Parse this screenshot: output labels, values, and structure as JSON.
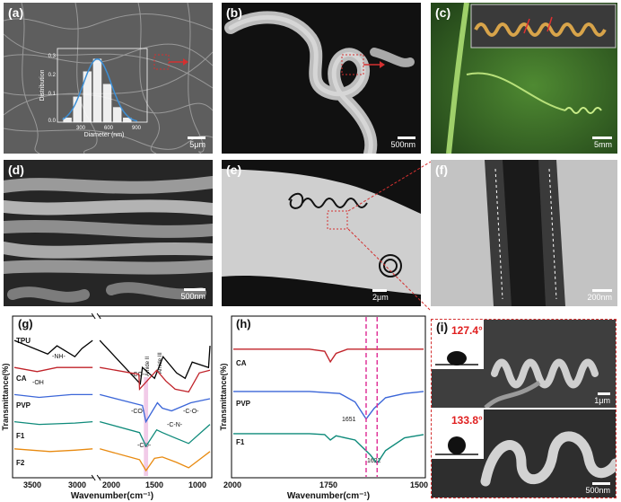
{
  "panels": {
    "a": {
      "label": "(a)",
      "scale": "5μm",
      "inset": {
        "ylabel": "Distribution",
        "xlabel": "Diameter (nm)",
        "yticks": [
          "0.3",
          "0.2",
          "0.1",
          "0.0"
        ],
        "xticks": [
          "300",
          "600",
          "900"
        ]
      }
    },
    "b": {
      "label": "(b)",
      "scale": "500nm"
    },
    "c": {
      "label": "(c)",
      "scale": "5mm"
    },
    "d": {
      "label": "(d)",
      "scale": "500nm"
    },
    "e": {
      "label": "(e)",
      "scale": "2μm"
    },
    "f": {
      "label": "(f)",
      "scale": "200nm"
    },
    "g": {
      "label": "(g)",
      "xlabel": "Wavenumber(cm⁻¹)",
      "ylabel": "Transmittance(%)",
      "xticks": [
        "3500",
        "3000",
        "2000",
        "1500",
        "1000"
      ],
      "series": [
        "TPU",
        "CA",
        "PVP",
        "F1",
        "F2"
      ],
      "colors": [
        "#000000",
        "#c0232a",
        "#3b66d8",
        "#0e8a7a",
        "#e88a10"
      ],
      "annotations": {
        "nh": "-NH-",
        "oh": "-OH",
        "co1": "-CO-",
        "co2": "-CO-",
        "co3": "-CO-",
        "amide2": "Amide II",
        "amide3": "Amide III",
        "coo": "-C-O-",
        "cn": "-C-N-"
      }
    },
    "h": {
      "label": "(h)",
      "xlabel": "Wavenumber(cm⁻¹)",
      "ylabel": "Transmittance(%)",
      "xticks": [
        "2000",
        "1750",
        "1500"
      ],
      "series": [
        "CA",
        "PVP",
        "F1"
      ],
      "colors": [
        "#c0232a",
        "#3b66d8",
        "#0e8a7a"
      ],
      "peaks": [
        "1651",
        "1622"
      ]
    },
    "i": {
      "label": "(i)",
      "angle_top": "127.4°",
      "angle_bottom": "133.8°",
      "scale_top": "1μm",
      "scale_bottom": "500nm"
    }
  },
  "chart_data": [
    {
      "type": "histogram",
      "panel": "a-inset",
      "xlabel": "Diameter (nm)",
      "ylabel": "Distribution",
      "x": [
        200,
        300,
        400,
        500,
        600,
        700,
        800
      ],
      "values": [
        0.02,
        0.12,
        0.24,
        0.3,
        0.18,
        0.07,
        0.02
      ],
      "ylim": [
        0,
        0.35
      ],
      "fit": "gaussian"
    },
    {
      "type": "line",
      "panel": "g",
      "xlabel": "Wavenumber(cm⁻¹)",
      "ylabel": "Transmittance(%)",
      "xlim": [
        3800,
        750
      ],
      "axis_break": [
        2700,
        2300
      ],
      "series": [
        {
          "name": "TPU",
          "x": [
            3800,
            3330,
            3200,
            2950,
            2850,
            2700,
            2300,
            1730,
            1700,
            1530,
            1410,
            1220,
            1100,
            1000,
            770,
            750
          ],
          "y": [
            5.0,
            4.5,
            4.8,
            4.4,
            4.7,
            5.0,
            5.0,
            3.4,
            4.0,
            3.6,
            4.4,
            3.8,
            3.6,
            4.2,
            4.0,
            4.8
          ]
        },
        {
          "name": "CA",
          "x": [
            3800,
            3480,
            3200,
            2700,
            2300,
            1750,
            1740,
            1500,
            1370,
            1240,
            1050,
            900,
            750
          ],
          "y": [
            4.0,
            3.85,
            4.0,
            4.0,
            4.0,
            3.75,
            3.2,
            3.9,
            3.5,
            3.2,
            3.1,
            3.8,
            3.9
          ]
        },
        {
          "name": "PVP",
          "x": [
            3800,
            3450,
            3000,
            2700,
            2300,
            1700,
            1651,
            1490,
            1420,
            1290,
            1020,
            750
          ],
          "y": [
            3.0,
            2.9,
            3.0,
            3.0,
            3.0,
            2.6,
            2.0,
            2.7,
            2.5,
            2.4,
            2.7,
            2.85
          ]
        },
        {
          "name": "F1",
          "x": [
            3800,
            3450,
            2950,
            2700,
            2300,
            1740,
            1650,
            1500,
            1420,
            1240,
            1050,
            750
          ],
          "y": [
            2.0,
            1.9,
            1.95,
            2.0,
            2.0,
            1.6,
            1.1,
            1.7,
            1.6,
            1.4,
            1.2,
            1.9
          ]
        },
        {
          "name": "F2",
          "x": [
            3800,
            3300,
            2950,
            2700,
            2300,
            1740,
            1650,
            1530,
            1420,
            1220,
            1050,
            750
          ],
          "y": [
            1.0,
            0.9,
            0.95,
            1.0,
            1.0,
            0.6,
            0.2,
            0.65,
            0.7,
            0.5,
            0.3,
            0.9
          ]
        }
      ]
    },
    {
      "type": "line",
      "panel": "h",
      "xlabel": "Wavenumber(cm⁻¹)",
      "ylabel": "Transmittance(%)",
      "xlim": [
        2000,
        1500
      ],
      "series": [
        {
          "name": "CA",
          "x": [
            2000,
            1800,
            1760,
            1745,
            1730,
            1700,
            1600,
            1500
          ],
          "y": [
            3.0,
            3.0,
            2.95,
            2.7,
            2.9,
            3.0,
            3.0,
            3.0
          ]
        },
        {
          "name": "PVP",
          "x": [
            2000,
            1800,
            1720,
            1680,
            1651,
            1630,
            1600,
            1550,
            1500
          ],
          "y": [
            2.0,
            2.0,
            1.95,
            1.75,
            1.35,
            1.6,
            1.85,
            1.95,
            2.0
          ]
        },
        {
          "name": "F1",
          "x": [
            2000,
            1800,
            1760,
            1745,
            1730,
            1680,
            1640,
            1622,
            1600,
            1550,
            1500
          ],
          "y": [
            1.0,
            1.0,
            0.98,
            0.85,
            0.95,
            0.85,
            0.5,
            0.3,
            0.6,
            0.9,
            0.98
          ]
        }
      ],
      "markers": [
        1651,
        1622
      ]
    }
  ]
}
